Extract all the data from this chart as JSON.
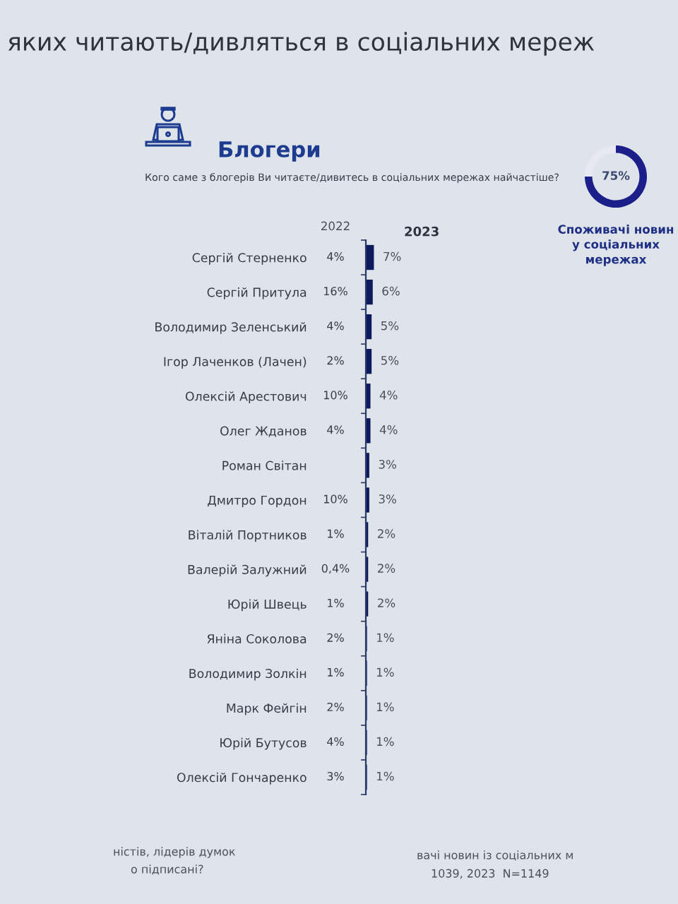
{
  "chart_data": [
    {
      "type": "bar",
      "orientation": "horizontal",
      "title": "яких читають/дивляться в соціальних мереж",
      "subtitle": "Блогери",
      "annotations": [
        "Кого саме з блогерів Ви читаєте/дивитесь в соціальних мережах найчастіше?",
        "ністів, лідерів думок",
        "о підписані?",
        "вачі новин із соціальних м",
        "1039, 2023  N=1149"
      ],
      "categories": [
        "Сергій Стерненко",
        "Сергій Притула",
        "Володимир Зеленський",
        "Ігор Лаченков (Лачен)",
        "Олексій Арестович",
        "Олег Жданов",
        "Роман Світан",
        "Дмитро Гордон",
        "Віталій Портников",
        "Валерій Залужний",
        "Юрій Швець",
        "Яніна Соколова",
        "Володимир Золкін",
        "Марк Фейгін",
        "Юрій Бутусов",
        "Олексій Гончаренко"
      ],
      "y2label": "2022",
      "y2_categories": [
        "4%",
        "16%",
        "4%",
        "2%",
        "10%",
        "4%",
        null,
        "10%",
        "1%",
        "0,4%",
        "1%",
        "2%",
        "1%",
        "2%",
        "4%",
        "3%"
      ],
      "series": [
        {
          "name": "2023",
          "color": "#0d1a5e",
          "values": [
            7,
            6,
            5,
            5,
            4,
            4,
            3,
            3,
            2,
            2,
            2,
            1,
            1,
            1,
            1,
            1
          ],
          "value_labels": [
            "7%",
            "6%",
            "5%",
            "5%",
            "4%",
            "4%",
            "3%",
            "3%",
            "2%",
            "2%",
            "2%",
            "1%",
            "1%",
            "1%",
            "1%",
            "1%"
          ]
        }
      ],
      "tick_labels": "y"
    },
    {
      "type": "donut",
      "title": "Споживачі новин у соціальних мережах",
      "categories": [
        null,
        null
      ],
      "values": [
        75,
        25
      ],
      "colors": [
        "#1a1f8a",
        "#e6e9ef"
      ],
      "value_labels": [
        "75%",
        null
      ]
    }
  ]
}
